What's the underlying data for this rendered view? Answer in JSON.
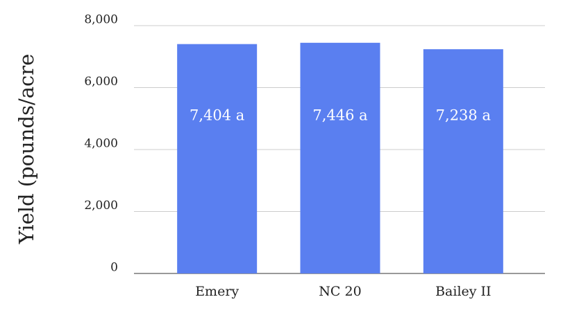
{
  "chart_data": {
    "type": "bar",
    "y_label": "Yield (pounds/acre",
    "categories": [
      "Emery",
      "NC 20",
      "Bailey II"
    ],
    "values": [
      7404,
      7446,
      7238
    ],
    "value_labels": [
      "7,404 a",
      "7,446 a",
      "7,238 a"
    ],
    "color": "#5a7ff0",
    "ylim": [
      0,
      8000
    ],
    "yticks": [
      0,
      {
        "value": 2000,
        "label": "2,000"
      },
      {
        "value": 4000,
        "label": "4,000"
      },
      {
        "value": 6000,
        "label": "6,000"
      },
      {
        "value": 8000,
        "label": "8,000"
      }
    ],
    "grid": true
  }
}
